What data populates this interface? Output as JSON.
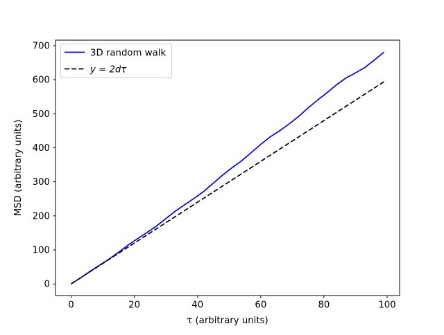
{
  "figure": {
    "background": "#ffffff"
  },
  "chart_data": {
    "type": "line",
    "title": "",
    "xlabel": "τ (arbitrary units)",
    "ylabel": "MSD (arbitrary units)",
    "xlim": [
      -4.95,
      103.95
    ],
    "ylim": [
      -34.1,
      716.1
    ],
    "xticks": [
      0,
      20,
      40,
      60,
      80,
      100
    ],
    "yticks": [
      0,
      100,
      200,
      300,
      400,
      500,
      600,
      700
    ],
    "grid": false,
    "legend": {
      "position": "upper-left",
      "border_color": "#cccccc",
      "background": "#ffffff"
    },
    "series": [
      {
        "name": "3D random walk",
        "color": "#0000ff",
        "style": "solid",
        "x": [
          0,
          3,
          6,
          9,
          12,
          15,
          18,
          21,
          24,
          27,
          30,
          33,
          36,
          39,
          42,
          45,
          48,
          51,
          54,
          57,
          60,
          63,
          66,
          69,
          72,
          75,
          78,
          81,
          84,
          87,
          90,
          93,
          96,
          99
        ],
        "y": [
          0,
          18,
          37,
          55,
          73,
          93,
          114,
          133,
          151,
          170,
          192,
          214,
          233,
          252,
          272,
          296,
          320,
          342,
          362,
          386,
          410,
          432,
          450,
          470,
          492,
          517,
          540,
          562,
          585,
          605,
          620,
          636,
          658,
          681
        ]
      },
      {
        "name": "y = 2dτ",
        "color": "#000000",
        "style": "dashed",
        "x": [
          0,
          99
        ],
        "y": [
          0,
          594
        ]
      }
    ]
  }
}
